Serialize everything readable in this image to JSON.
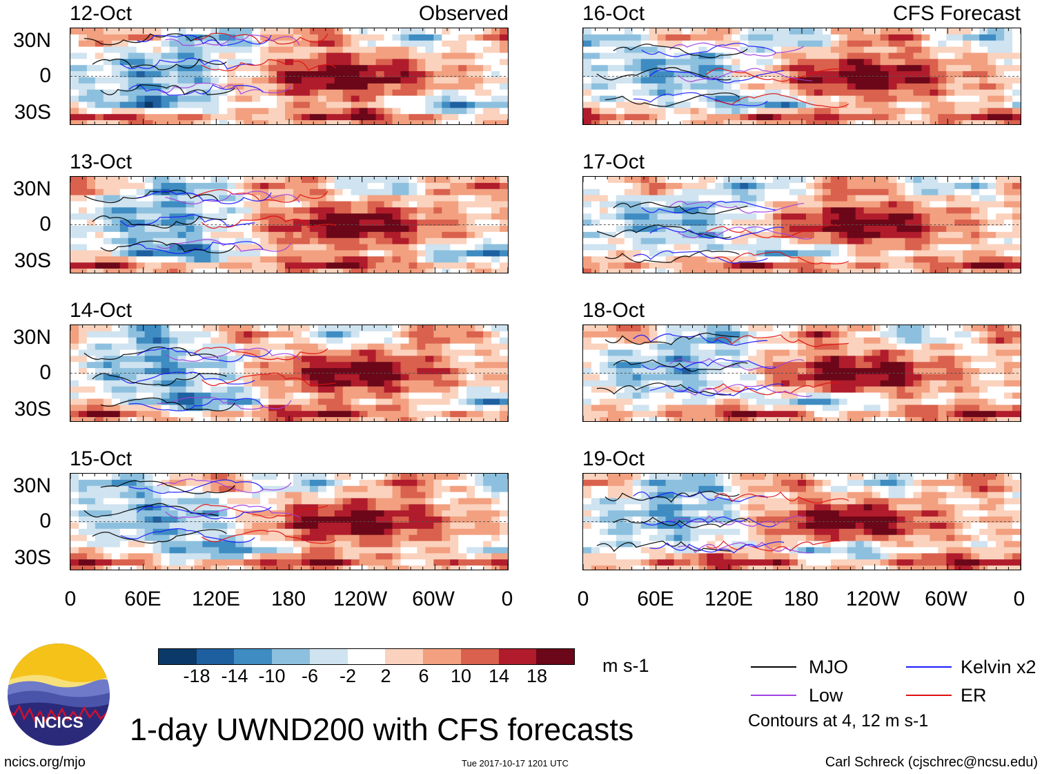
{
  "chart_data": {
    "type": "heatmap",
    "title": "1-day UWND200 with CFS forecasts",
    "variable": "UWND200",
    "units": "m s-1",
    "x_tick_labels": [
      "0",
      "60E",
      "120E",
      "180",
      "120W",
      "60W",
      "0"
    ],
    "y_tick_labels": [
      "30N",
      "0",
      "30S"
    ],
    "colorbar": {
      "tick_labels": [
        "-18",
        "-14",
        "-10",
        "-6",
        "-2",
        "2",
        "6",
        "10",
        "14",
        "18"
      ],
      "colors": [
        "#0b3a69",
        "#1e5fa0",
        "#3e8cc2",
        "#8dc0de",
        "#cfe3f0",
        "#ffffff",
        "#fbd2bd",
        "#f2a080",
        "#d9614d",
        "#b01c2c",
        "#6b0718"
      ]
    },
    "sections": {
      "observed": "Observed",
      "forecast": "CFS Forecast"
    },
    "panels": [
      {
        "date": "12-Oct",
        "type": "Observed"
      },
      {
        "date": "13-Oct",
        "type": "Observed"
      },
      {
        "date": "14-Oct",
        "type": "Observed"
      },
      {
        "date": "15-Oct",
        "type": "Observed"
      },
      {
        "date": "16-Oct",
        "type": "CFS Forecast"
      },
      {
        "date": "17-Oct",
        "type": "CFS Forecast"
      },
      {
        "date": "18-Oct",
        "type": "CFS Forecast"
      },
      {
        "date": "19-Oct",
        "type": "CFS Forecast"
      }
    ],
    "legend": [
      {
        "label": "MJO",
        "color": "#000000"
      },
      {
        "label": "Kelvin x2",
        "color": "#1a1aff"
      },
      {
        "label": "Low",
        "color": "#a040e0"
      },
      {
        "label": "ER",
        "color": "#e01010"
      }
    ],
    "contour_note": "Contours at 4, 12 m s-1"
  },
  "logo_text": "NCICS",
  "footer": {
    "left": "ncics.org/mjo",
    "center": "Tue 2017-10-17 1201 UTC",
    "right": "Carl Schreck (cjschrec@ncsu.edu)"
  }
}
